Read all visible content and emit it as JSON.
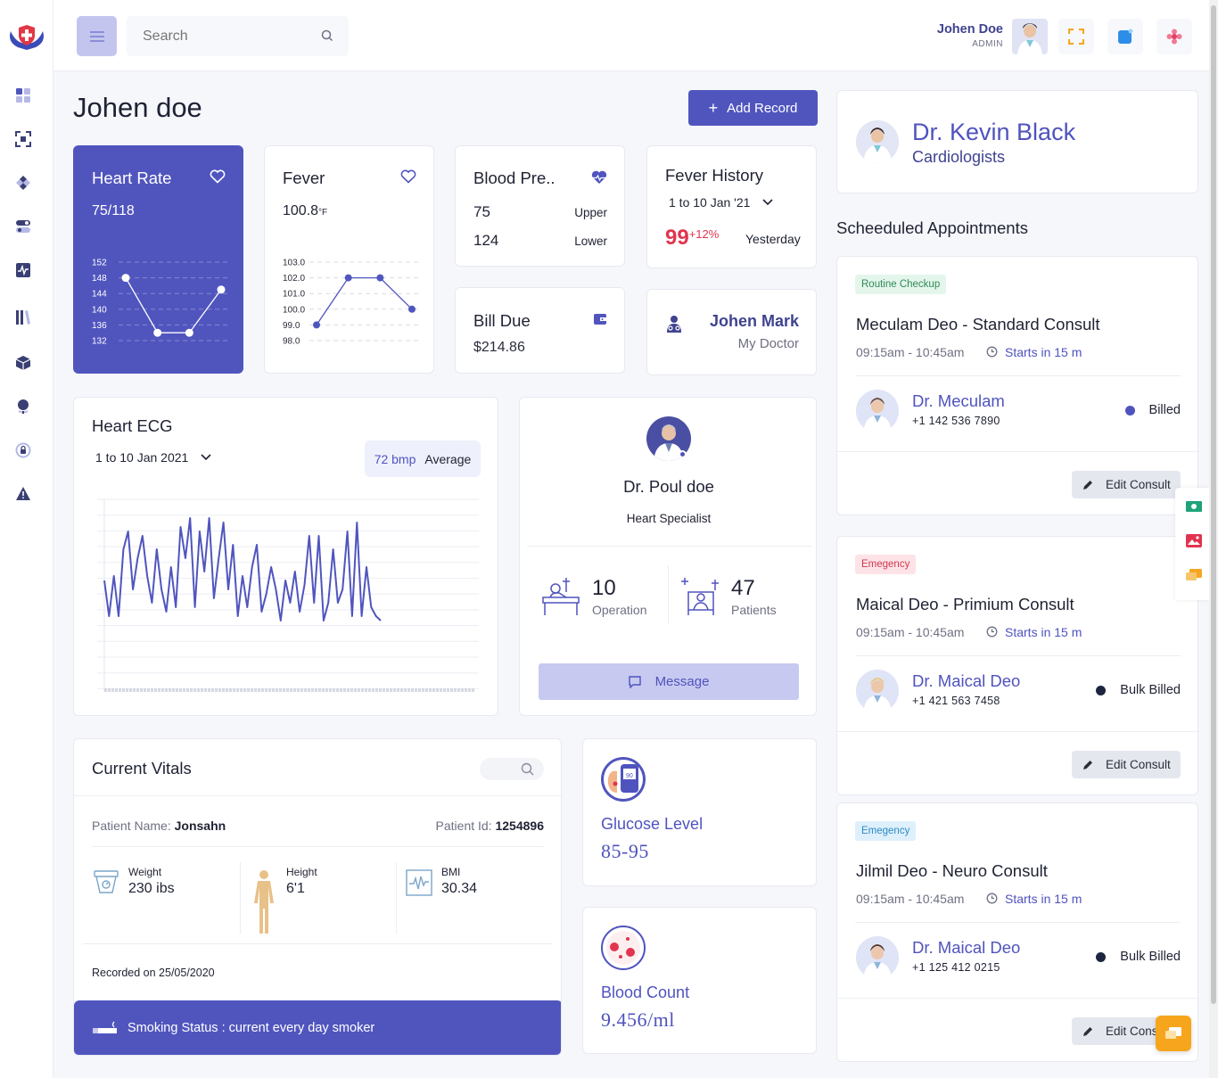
{
  "topbar": {
    "search_placeholder": "Search",
    "user_name": "Johen Doe",
    "user_role": "ADMIN"
  },
  "page": {
    "title": "Johen doe",
    "add_record_label": "Add Record"
  },
  "heart_rate": {
    "title": "Heart Rate",
    "value": "75/118",
    "y_ticks": [
      "152",
      "148",
      "144",
      "140",
      "136",
      "132"
    ],
    "points": [
      148,
      134,
      134,
      145
    ]
  },
  "fever": {
    "title": "Fever",
    "value": "100.8",
    "unit": "°F",
    "y_ticks": [
      "103.0",
      "102.0",
      "101.0",
      "100.0",
      "99.0",
      "98.0"
    ],
    "points": [
      99.0,
      102.0,
      102.0,
      100.0
    ]
  },
  "blood_pressure": {
    "title": "Blood Pre..",
    "upper_value": "75",
    "upper_label": "Upper",
    "lower_value": "124",
    "lower_label": "Lower"
  },
  "fever_history": {
    "title": "Fever History",
    "range": "1 to 10 Jan '21",
    "value": "99",
    "change": "+12%",
    "period": "Yesterday"
  },
  "bill_due": {
    "title": "Bill Due",
    "amount": "$214.86"
  },
  "my_doctor": {
    "name": "Johen Mark",
    "label": "My Doctor"
  },
  "ecg": {
    "title": "Heart ECG",
    "range": "1 to 10 Jan 2021",
    "bpm": "72 bmp",
    "avg_label": "Average"
  },
  "doctor_profile": {
    "name": "Dr. Poul doe",
    "specialty": "Heart Specialist",
    "operations_value": "10",
    "operations_label": "Operation",
    "patients_value": "47",
    "patients_label": "Patients",
    "message_label": "Message"
  },
  "vitals": {
    "title": "Current Vitals",
    "patient_name_label": "Patient Name:",
    "patient_name": "Jonsahn",
    "patient_id_label": "Patient Id:",
    "patient_id": "1254896",
    "weight_label": "Weight",
    "weight_value": "230 ibs",
    "height_label": "Height",
    "height_value": "6'1",
    "bmi_label": "BMI",
    "bmi_value": "30.34",
    "recorded": "Recorded on 25/05/2020",
    "smoking": "Smoking Status : current every day smoker"
  },
  "glucose": {
    "title": "Glucose Level",
    "value": "85-95"
  },
  "blood_count": {
    "title": "Blood Count",
    "value": "9.456/ml"
  },
  "cardio_doctor": {
    "name": "Dr. Kevin Black",
    "specialty": "Cardiologists"
  },
  "appointments": {
    "heading": "Scheeduled Appointments",
    "items": [
      {
        "tag": "Routine Checkup",
        "tag_bg": "#e4f6ec",
        "tag_fg": "#2f8a58",
        "title": "Meculam Deo - Standard Consult",
        "time": "09:15am - 10:45am",
        "starts": "Starts in 15 m",
        "doctor": "Dr. Meculam",
        "phone": "+1 142 536 7890",
        "status": "Billed",
        "status_color": "#4f53be",
        "edit_label": "Edit Consult"
      },
      {
        "tag": "Emegency",
        "tag_bg": "#fde3e7",
        "tag_fg": "#d0384f",
        "title": "Maical Deo - Primium Consult",
        "time": "09:15am - 10:45am",
        "starts": "Starts in 15 m",
        "doctor": "Dr. Maical Deo",
        "phone": "+1 421 563 7458",
        "status": "Bulk Billed",
        "status_color": "#1d2540",
        "edit_label": "Edit Consult"
      },
      {
        "tag": "Emegency",
        "tag_bg": "#def0fb",
        "tag_fg": "#2d8bc7",
        "title": "Jilmil Deo - Neuro Consult",
        "time": "09:15am - 10:45am",
        "starts": "Starts in 15 m",
        "doctor": "Dr. Maical Deo",
        "phone": "+1 125 412 0215",
        "status": "Bulk Billed",
        "status_color": "#1d2540",
        "edit_label": "Edit Cons"
      }
    ]
  },
  "colors": {
    "accent": "#5055be",
    "accent_light": "#c7c9f0",
    "chat_button": "#f7a51c"
  }
}
